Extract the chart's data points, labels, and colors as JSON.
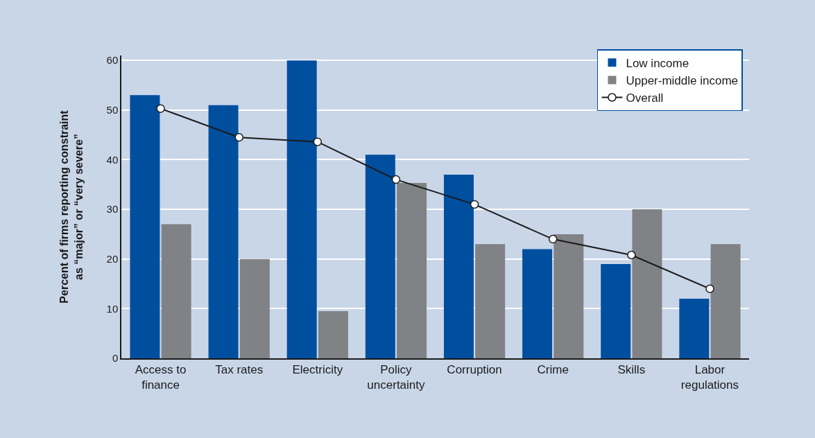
{
  "chart_data": {
    "type": "bar",
    "ylabel": "Percent of firms reporting constraint as “major” or “very severe”",
    "categories": [
      "Access to finance",
      "Tax rates",
      "Electricity",
      "Policy uncertainty",
      "Corruption",
      "Crime",
      "Skills",
      "Labor regulations"
    ],
    "series": [
      {
        "name": "Low income",
        "color": "#004f9f",
        "values": [
          53,
          51,
          60,
          41,
          37,
          22,
          19,
          12
        ]
      },
      {
        "name": "Upper-middle income",
        "color": "#808285",
        "values": [
          27,
          20,
          9.5,
          35.3,
          23,
          25,
          30,
          23
        ]
      },
      {
        "name": "Overall",
        "type": "line",
        "color": "#1a1a1a",
        "marker": "circle",
        "values": [
          50.3,
          44.5,
          43.6,
          36,
          31,
          24,
          20.8,
          14
        ]
      }
    ],
    "ylim": [
      0,
      61
    ],
    "yticks": [
      0,
      10,
      20,
      30,
      40,
      50,
      60
    ],
    "grid": "y",
    "legend": "top right"
  }
}
